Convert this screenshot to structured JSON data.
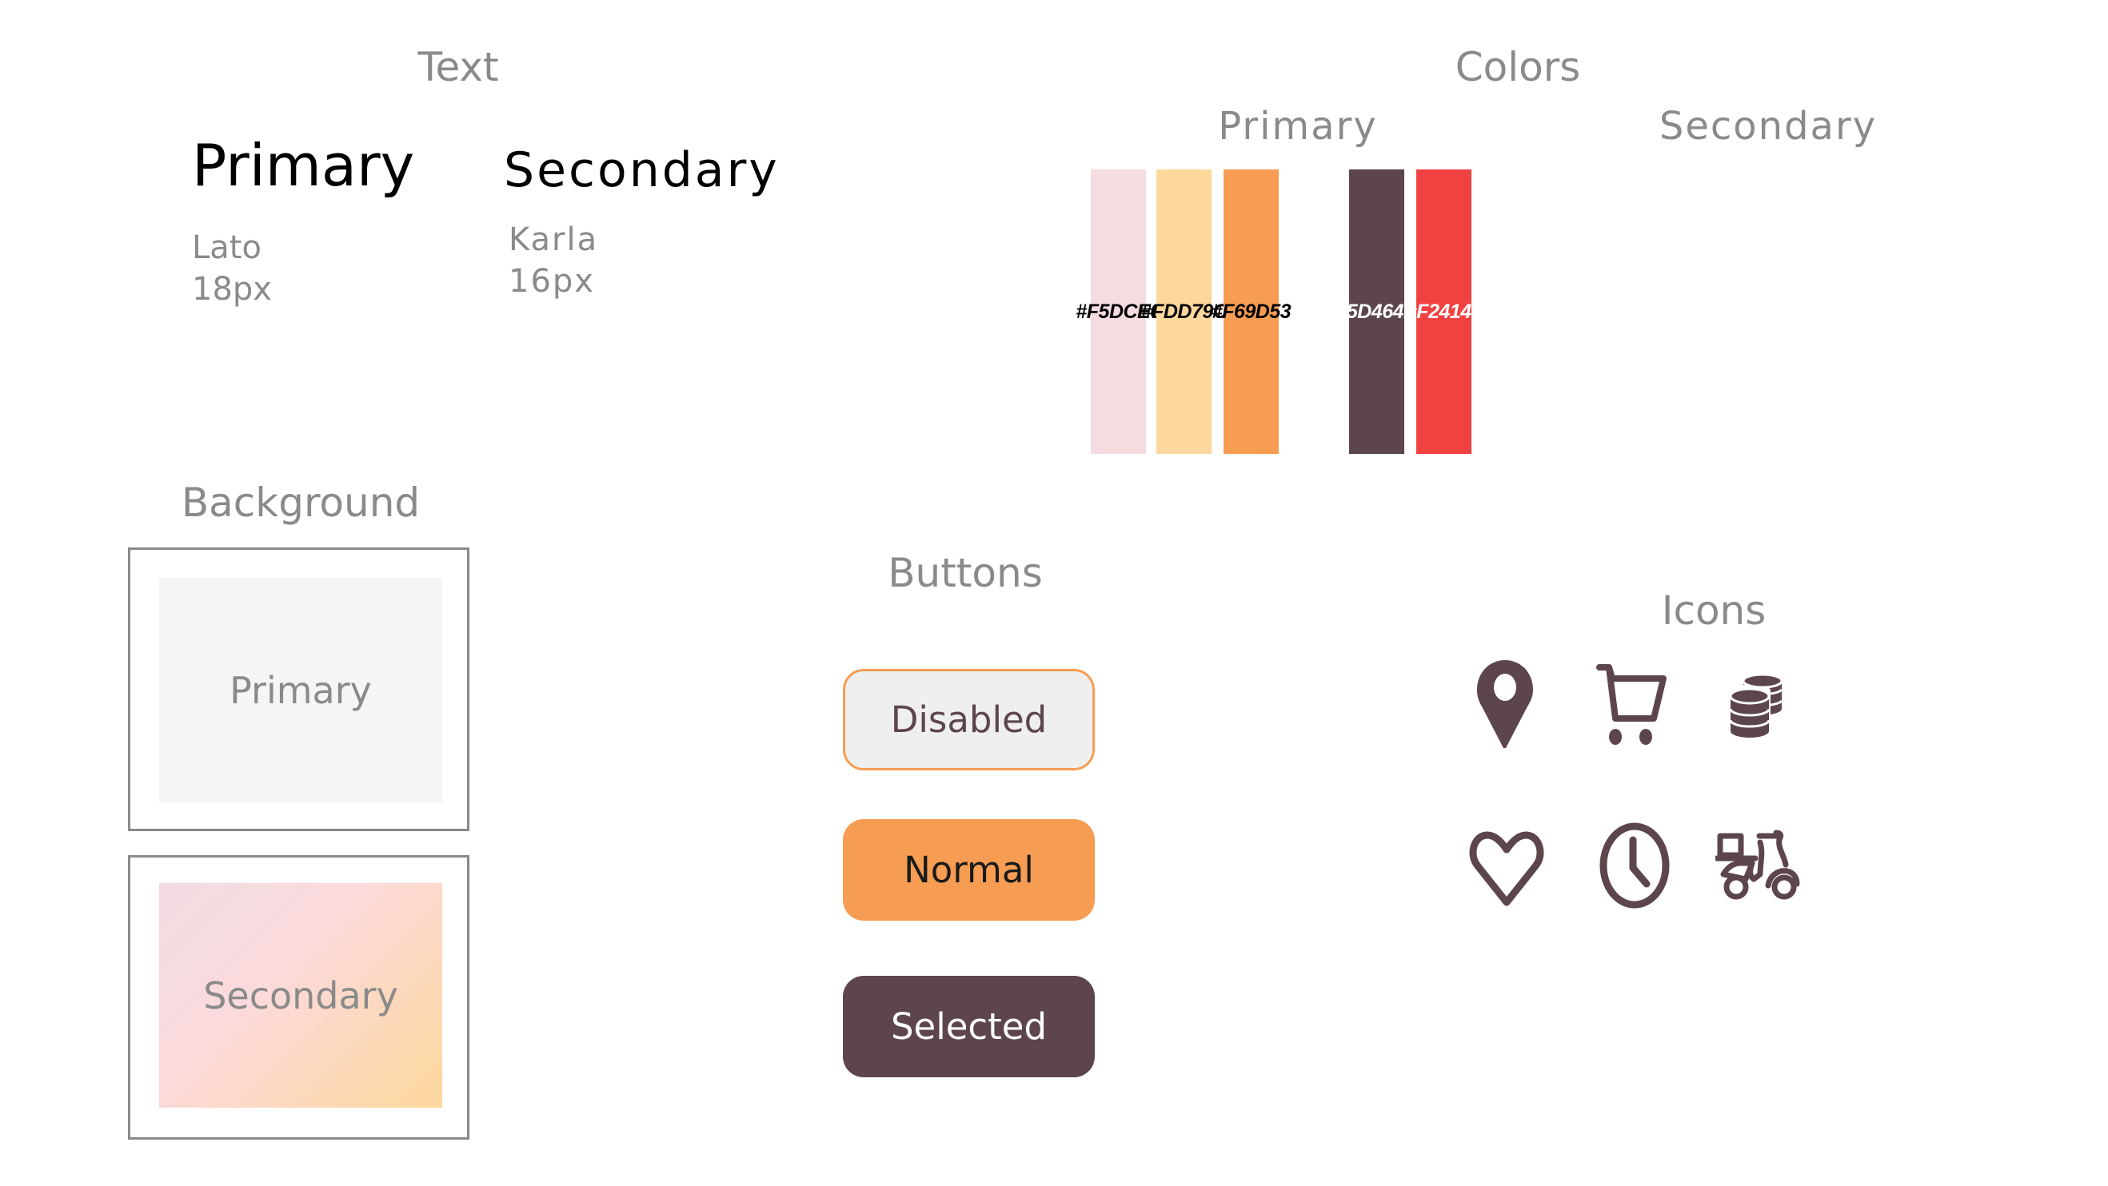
{
  "text_section": {
    "title": "Text",
    "primary": {
      "label": "Primary",
      "font": "Lato",
      "size": "18px"
    },
    "secondary": {
      "label": "Secondary",
      "font": "Karla",
      "size": "16px"
    }
  },
  "colors_section": {
    "title": "Colors",
    "primary": {
      "title": "Primary",
      "swatches": [
        "#F5DCE0",
        "#FDD79C",
        "#F69D53"
      ]
    },
    "secondary": {
      "title": "Secondary",
      "swatches": [
        "#5D464B",
        "#F24141"
      ]
    }
  },
  "background_section": {
    "title": "Background",
    "primary_label": "Primary",
    "secondary_label": "Secondary"
  },
  "buttons_section": {
    "title": "Buttons",
    "disabled": "Disabled",
    "normal": "Normal",
    "selected": "Selected"
  },
  "icons_section": {
    "title": "Icons",
    "icons": [
      "map-pin-icon",
      "shopping-cart-icon",
      "coins-icon",
      "heart-icon",
      "clock-icon",
      "delivery-scooter-icon"
    ],
    "color": "#5D464B"
  }
}
